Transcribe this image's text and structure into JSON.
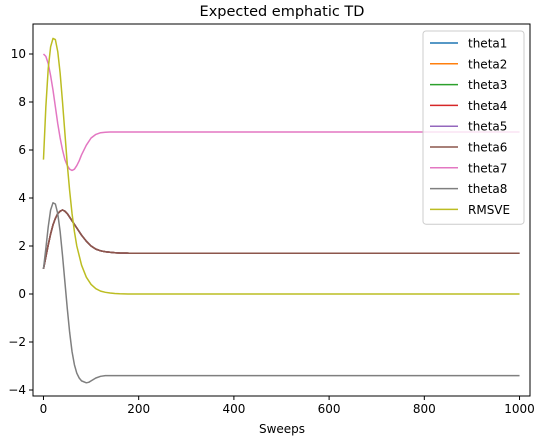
{
  "chart_data": {
    "type": "line",
    "title": "Expected emphatic TD",
    "xlabel": "Sweeps",
    "ylabel": "",
    "xlim": [
      -22,
      1022
    ],
    "ylim": [
      -4.25,
      11.25
    ],
    "xticks": [
      0,
      200,
      400,
      600,
      800,
      1000
    ],
    "xtick_labels": [
      "0",
      "200",
      "400",
      "600",
      "800",
      "1000"
    ],
    "yticks": [
      -4,
      -2,
      0,
      2,
      4,
      6,
      8,
      10
    ],
    "ytick_labels": [
      "−4",
      "−2",
      "0",
      "2",
      "4",
      "6",
      "8",
      "10"
    ],
    "grid": false,
    "legend_position": "top-right",
    "series": [
      {
        "name": "theta1",
        "color": "#1f77b4",
        "x": [
          0,
          5,
          10,
          15,
          20,
          25,
          30,
          35,
          40,
          45,
          50,
          55,
          60,
          70,
          80,
          90,
          100,
          110,
          120,
          130,
          140,
          150,
          160,
          180,
          200,
          250,
          300,
          400,
          500,
          600,
          700,
          800,
          900,
          1000
        ],
        "y": [
          1.05,
          1.55,
          2.05,
          2.5,
          2.88,
          3.15,
          3.35,
          3.45,
          3.5,
          3.45,
          3.35,
          3.2,
          3.05,
          2.75,
          2.45,
          2.2,
          2.0,
          1.87,
          1.8,
          1.76,
          1.74,
          1.72,
          1.71,
          1.7,
          1.7,
          1.7,
          1.7,
          1.7,
          1.7,
          1.7,
          1.7,
          1.7,
          1.7,
          1.7
        ]
      },
      {
        "name": "theta2",
        "color": "#ff7f0e",
        "x": [
          0,
          5,
          10,
          15,
          20,
          25,
          30,
          35,
          40,
          45,
          50,
          55,
          60,
          70,
          80,
          90,
          100,
          110,
          120,
          130,
          140,
          150,
          160,
          180,
          200,
          250,
          300,
          400,
          500,
          600,
          700,
          800,
          900,
          1000
        ],
        "y": [
          1.05,
          1.55,
          2.05,
          2.5,
          2.88,
          3.15,
          3.35,
          3.45,
          3.5,
          3.45,
          3.35,
          3.2,
          3.05,
          2.75,
          2.45,
          2.2,
          2.0,
          1.87,
          1.8,
          1.76,
          1.74,
          1.72,
          1.71,
          1.7,
          1.7,
          1.7,
          1.7,
          1.7,
          1.7,
          1.7,
          1.7,
          1.7,
          1.7,
          1.7
        ]
      },
      {
        "name": "theta3",
        "color": "#2ca02c",
        "x": [
          0,
          5,
          10,
          15,
          20,
          25,
          30,
          35,
          40,
          45,
          50,
          55,
          60,
          70,
          80,
          90,
          100,
          110,
          120,
          130,
          140,
          150,
          160,
          180,
          200,
          250,
          300,
          400,
          500,
          600,
          700,
          800,
          900,
          1000
        ],
        "y": [
          1.05,
          1.55,
          2.05,
          2.5,
          2.88,
          3.15,
          3.35,
          3.45,
          3.5,
          3.45,
          3.35,
          3.2,
          3.05,
          2.75,
          2.45,
          2.2,
          2.0,
          1.87,
          1.8,
          1.76,
          1.74,
          1.72,
          1.71,
          1.7,
          1.7,
          1.7,
          1.7,
          1.7,
          1.7,
          1.7,
          1.7,
          1.7,
          1.7,
          1.7
        ]
      },
      {
        "name": "theta4",
        "color": "#d62728",
        "x": [
          0,
          5,
          10,
          15,
          20,
          25,
          30,
          35,
          40,
          45,
          50,
          55,
          60,
          70,
          80,
          90,
          100,
          110,
          120,
          130,
          140,
          150,
          160,
          180,
          200,
          250,
          300,
          400,
          500,
          600,
          700,
          800,
          900,
          1000
        ],
        "y": [
          1.05,
          1.55,
          2.05,
          2.5,
          2.88,
          3.15,
          3.35,
          3.45,
          3.5,
          3.45,
          3.35,
          3.2,
          3.05,
          2.75,
          2.45,
          2.2,
          2.0,
          1.87,
          1.8,
          1.76,
          1.74,
          1.72,
          1.71,
          1.7,
          1.7,
          1.7,
          1.7,
          1.7,
          1.7,
          1.7,
          1.7,
          1.7,
          1.7,
          1.7
        ]
      },
      {
        "name": "theta5",
        "color": "#9467bd",
        "x": [
          0,
          5,
          10,
          15,
          20,
          25,
          30,
          35,
          40,
          45,
          50,
          55,
          60,
          70,
          80,
          90,
          100,
          110,
          120,
          130,
          140,
          150,
          160,
          180,
          200,
          250,
          300,
          400,
          500,
          600,
          700,
          800,
          900,
          1000
        ],
        "y": [
          1.05,
          1.55,
          2.05,
          2.5,
          2.88,
          3.15,
          3.35,
          3.45,
          3.5,
          3.45,
          3.35,
          3.2,
          3.05,
          2.75,
          2.45,
          2.2,
          2.0,
          1.87,
          1.8,
          1.76,
          1.74,
          1.72,
          1.71,
          1.7,
          1.7,
          1.7,
          1.7,
          1.7,
          1.7,
          1.7,
          1.7,
          1.7,
          1.7,
          1.7
        ]
      },
      {
        "name": "theta6",
        "color": "#8c564b",
        "x": [
          0,
          5,
          10,
          15,
          20,
          25,
          30,
          35,
          40,
          45,
          50,
          55,
          60,
          70,
          80,
          90,
          100,
          110,
          120,
          130,
          140,
          150,
          160,
          180,
          200,
          250,
          300,
          400,
          500,
          600,
          700,
          800,
          900,
          1000
        ],
        "y": [
          1.05,
          1.55,
          2.05,
          2.5,
          2.88,
          3.15,
          3.35,
          3.45,
          3.5,
          3.45,
          3.35,
          3.2,
          3.05,
          2.75,
          2.45,
          2.2,
          2.0,
          1.87,
          1.8,
          1.76,
          1.74,
          1.72,
          1.71,
          1.7,
          1.7,
          1.7,
          1.7,
          1.7,
          1.7,
          1.7,
          1.7,
          1.7,
          1.7,
          1.7
        ]
      },
      {
        "name": "theta7",
        "color": "#e377c2",
        "x": [
          0,
          5,
          10,
          15,
          20,
          25,
          30,
          35,
          40,
          45,
          50,
          55,
          60,
          65,
          70,
          75,
          80,
          90,
          100,
          110,
          120,
          130,
          140,
          150,
          160,
          180,
          200,
          250,
          300,
          400,
          500,
          600,
          700,
          800,
          900,
          1000
        ],
        "y": [
          10.0,
          9.9,
          9.6,
          9.1,
          8.5,
          7.8,
          7.1,
          6.5,
          6.0,
          5.6,
          5.35,
          5.2,
          5.15,
          5.2,
          5.35,
          5.55,
          5.8,
          6.2,
          6.5,
          6.65,
          6.72,
          6.74,
          6.75,
          6.75,
          6.75,
          6.75,
          6.75,
          6.75,
          6.75,
          6.75,
          6.75,
          6.75,
          6.75,
          6.75,
          6.75,
          6.75
        ]
      },
      {
        "name": "theta8",
        "color": "#7f7f7f",
        "x": [
          0,
          5,
          10,
          15,
          20,
          25,
          30,
          35,
          40,
          45,
          50,
          55,
          60,
          65,
          70,
          75,
          80,
          90,
          95,
          100,
          110,
          120,
          130,
          140,
          150,
          160,
          180,
          200,
          250,
          300,
          400,
          500,
          600,
          700,
          800,
          900,
          1000
        ],
        "y": [
          1.05,
          1.9,
          2.8,
          3.5,
          3.8,
          3.75,
          3.35,
          2.6,
          1.6,
          0.5,
          -0.6,
          -1.6,
          -2.4,
          -2.95,
          -3.3,
          -3.5,
          -3.62,
          -3.7,
          -3.68,
          -3.62,
          -3.5,
          -3.43,
          -3.4,
          -3.4,
          -3.4,
          -3.4,
          -3.4,
          -3.4,
          -3.4,
          -3.4,
          -3.4,
          -3.4,
          -3.4,
          -3.4,
          -3.4,
          -3.4,
          -3.4
        ]
      },
      {
        "name": "RMSVE",
        "color": "#bcbd22",
        "x": [
          0,
          5,
          10,
          15,
          20,
          25,
          30,
          35,
          40,
          45,
          50,
          55,
          60,
          65,
          70,
          80,
          90,
          100,
          110,
          120,
          130,
          140,
          150,
          160,
          180,
          200,
          250,
          300,
          400,
          500,
          600,
          700,
          800,
          900,
          1000
        ],
        "y": [
          5.6,
          7.8,
          9.4,
          10.3,
          10.65,
          10.6,
          10.1,
          9.2,
          8.0,
          6.7,
          5.4,
          4.3,
          3.35,
          2.6,
          2.0,
          1.2,
          0.7,
          0.4,
          0.22,
          0.12,
          0.07,
          0.04,
          0.02,
          0.01,
          0.0,
          0.0,
          0.0,
          0.0,
          0.0,
          0.0,
          0.0,
          0.0,
          0.0,
          0.0,
          0.0
        ]
      }
    ]
  }
}
